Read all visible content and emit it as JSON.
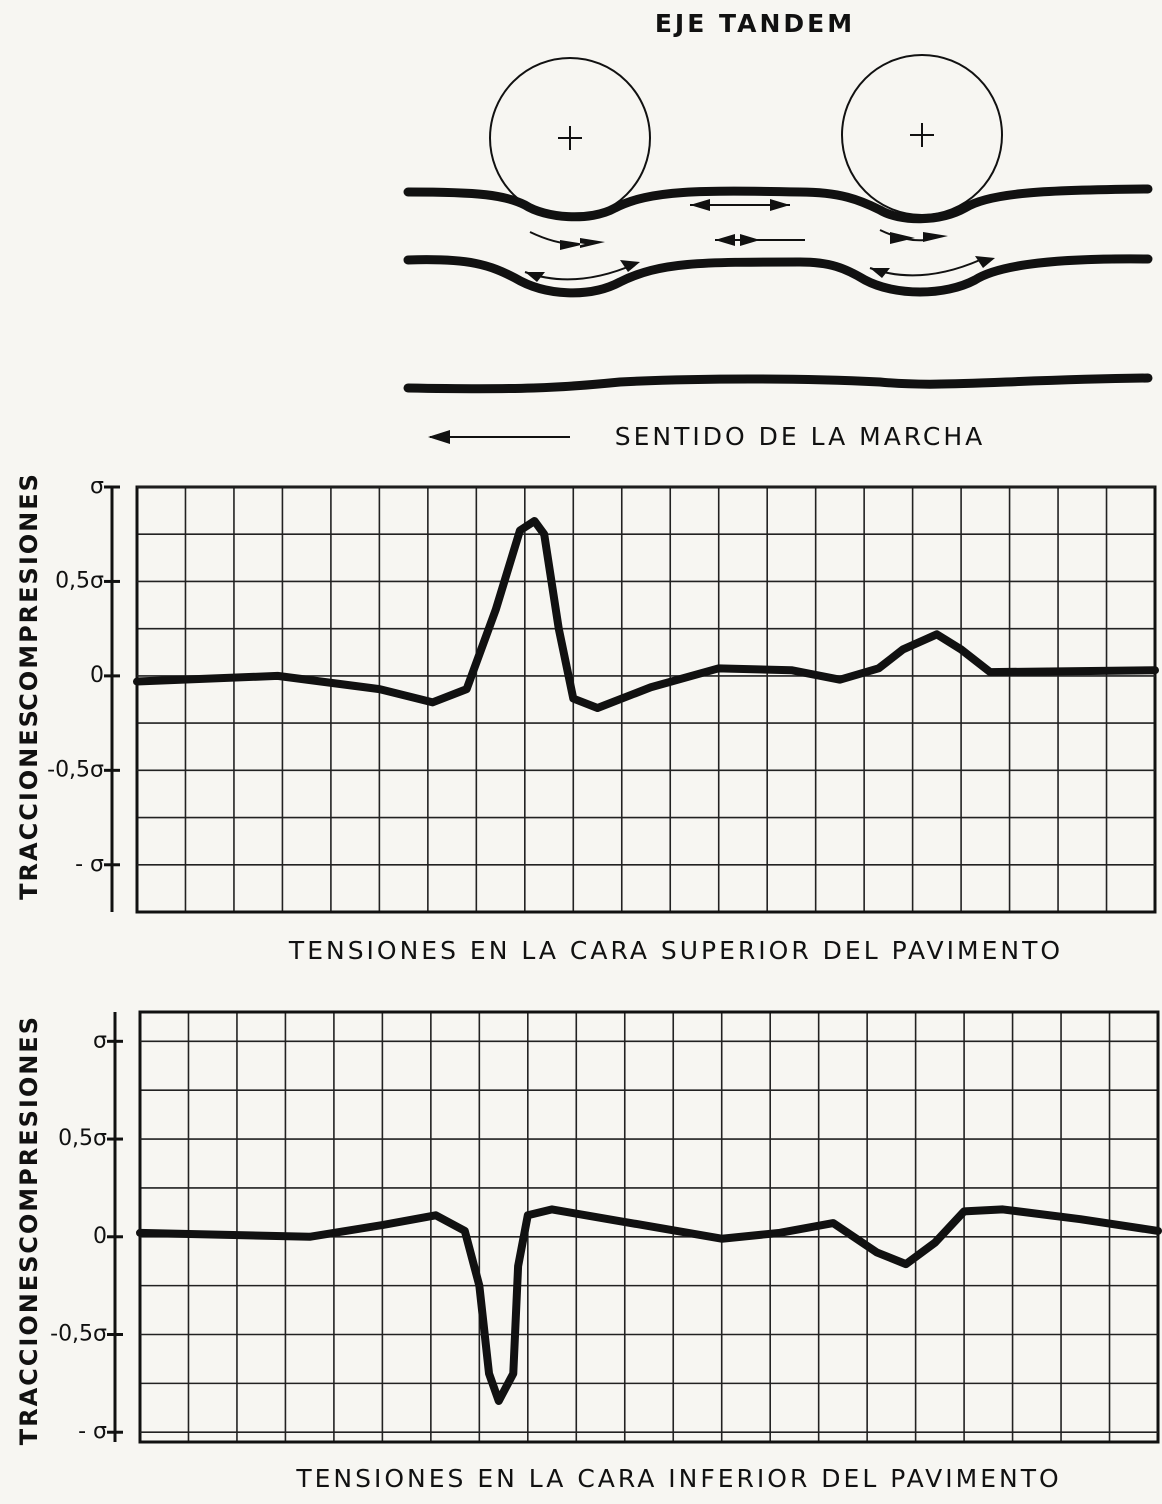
{
  "diagram": {
    "title": "EJE TANDEM",
    "direction": "SENTIDO DE LA MARCHA"
  },
  "chart_data": [
    {
      "type": "line",
      "title": "TENSIONES EN LA CARA SUPERIOR DEL PAVIMENTO",
      "ylabels": [
        "TRACCIONES",
        "COMPRESIONES"
      ],
      "xlim": [
        0,
        21
      ],
      "ylim": [
        -1.25,
        1.0
      ],
      "grid": true,
      "color": "#111111",
      "yticks": [
        {
          "value": 1,
          "label": "σ"
        },
        {
          "value": 0.5,
          "label": "0,5σ"
        },
        0,
        {
          "value": -0.5,
          "label": "-0,5σ"
        },
        {
          "value": -1,
          "label": "- σ"
        }
      ],
      "x": [
        0,
        2.9,
        5.0,
        6.1,
        6.8,
        7.4,
        7.9,
        8.2,
        8.4,
        8.7,
        9.0,
        9.5,
        10.6,
        12.0,
        13.5,
        14.5,
        15.3,
        15.8,
        16.5,
        17.0,
        17.6,
        21
      ],
      "values": [
        -0.03,
        0,
        -0.07,
        -0.14,
        -0.07,
        0.35,
        0.77,
        0.82,
        0.75,
        0.25,
        -0.12,
        -0.17,
        -0.06,
        0.04,
        0.03,
        -0.02,
        0.04,
        0.14,
        0.22,
        0.14,
        0.02,
        0.03
      ]
    },
    {
      "type": "line",
      "title": "TENSIONES EN LA CARA INFERIOR DEL PAVIMENTO",
      "ylabels": [
        "TRACCIONES",
        "COMPRESIONES"
      ],
      "xlim": [
        0,
        21
      ],
      "ylim": [
        -1.05,
        1.15
      ],
      "grid": true,
      "color": "#111111",
      "yticks": [
        {
          "value": 1,
          "label": "σ"
        },
        {
          "value": 0.5,
          "label": "0,5σ"
        },
        0,
        {
          "value": -0.5,
          "label": "-0,5σ"
        },
        {
          "value": -1,
          "label": "- σ"
        }
      ],
      "x": [
        0,
        3.5,
        5.0,
        6.1,
        6.7,
        7.0,
        7.2,
        7.4,
        7.7,
        7.8,
        8.0,
        8.5,
        9.9,
        12.0,
        13.2,
        14.3,
        15.2,
        15.8,
        16.4,
        17.0,
        17.8,
        19.4,
        21
      ],
      "values": [
        0.02,
        0,
        0.06,
        0.11,
        0.03,
        -0.25,
        -0.7,
        -0.84,
        -0.7,
        -0.15,
        0.11,
        0.14,
        0.08,
        -0.01,
        0.02,
        0.07,
        -0.08,
        -0.14,
        -0.03,
        0.13,
        0.14,
        0.09,
        0.03
      ]
    }
  ]
}
